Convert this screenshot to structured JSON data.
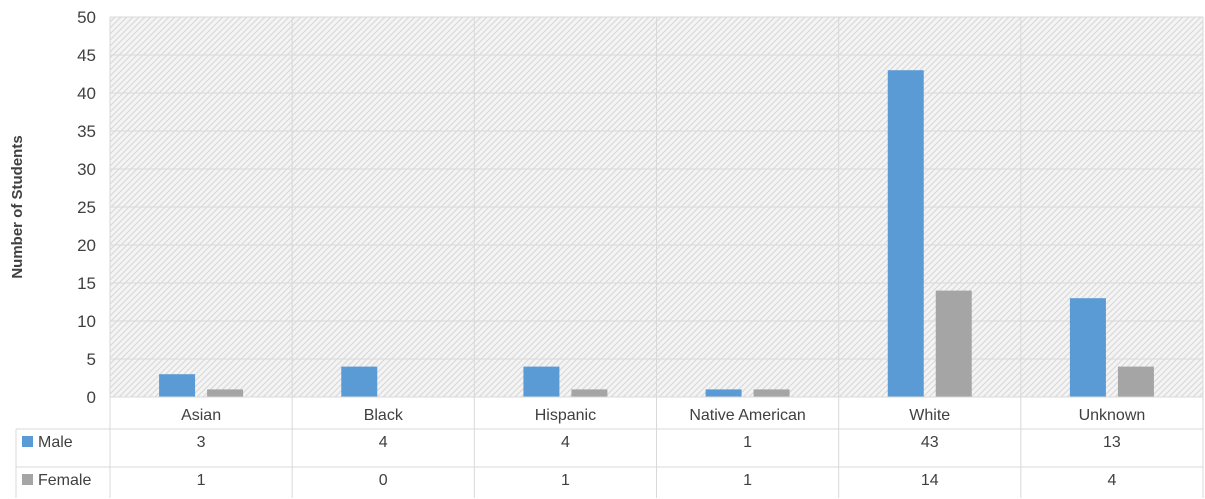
{
  "chart_data": {
    "type": "bar",
    "title": "",
    "xlabel": "",
    "ylabel": "Number of Students",
    "ylim": [
      0,
      50
    ],
    "yticks": [
      0,
      5,
      10,
      15,
      20,
      25,
      30,
      35,
      40,
      45,
      50
    ],
    "grid": true,
    "legend": "data-table",
    "categories": [
      "Asian",
      "Black",
      "Hispanic",
      "Native American",
      "White",
      "Unknown"
    ],
    "series": [
      {
        "name": "Male",
        "color": "#5b9bd5",
        "values": [
          3,
          4,
          4,
          1,
          43,
          13
        ]
      },
      {
        "name": "Female",
        "color": "#a5a5a5",
        "values": [
          1,
          0,
          1,
          1,
          14,
          4
        ]
      }
    ]
  }
}
